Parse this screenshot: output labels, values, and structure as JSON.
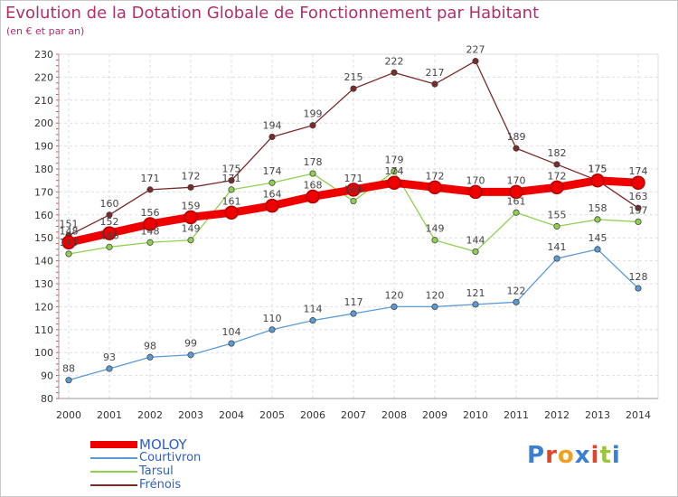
{
  "header": {
    "title": "Evolution de la Dotation Globale de Fonctionnement par Habitant",
    "subtitle": "(en € et par an)"
  },
  "logo": {
    "text": "Proxiti",
    "letter_colors": [
      "#3a7fd0",
      "#e0442a",
      "#f0a020",
      "#3a7fd0",
      "#e0442a",
      "#9bc53d",
      "#3a7fd0"
    ]
  },
  "chart_data": {
    "type": "line",
    "x": [
      "2000",
      "2001",
      "2002",
      "2003",
      "2004",
      "2005",
      "2006",
      "2007",
      "2008",
      "2009",
      "2010",
      "2011",
      "2012",
      "2013",
      "2014"
    ],
    "ylim": [
      80,
      230
    ],
    "yticks": [
      80,
      90,
      100,
      110,
      120,
      130,
      140,
      150,
      160,
      170,
      180,
      190,
      200,
      210,
      220,
      230
    ],
    "grid": true,
    "legend_position": "bottom-left",
    "series": [
      {
        "name": "MOLOY",
        "color": "#ee0000",
        "values": [
          148,
          152,
          156,
          159,
          161,
          164,
          168,
          171,
          174,
          172,
          170,
          170,
          172,
          175,
          174
        ]
      },
      {
        "name": "Courtivron",
        "color": "#5b9bd5",
        "values": [
          88,
          93,
          98,
          99,
          104,
          110,
          114,
          117,
          120,
          120,
          121,
          122,
          141,
          145,
          128
        ]
      },
      {
        "name": "Tarsul",
        "color": "#90d050",
        "values": [
          143,
          146,
          148,
          149,
          171,
          174,
          178,
          166,
          179,
          149,
          144,
          161,
          155,
          158,
          157
        ]
      },
      {
        "name": "Frénois",
        "color": "#7b2a2a",
        "values": [
          151,
          160,
          171,
          172,
          175,
          194,
          199,
          215,
          222,
          217,
          227,
          189,
          182,
          175,
          163
        ]
      }
    ]
  }
}
